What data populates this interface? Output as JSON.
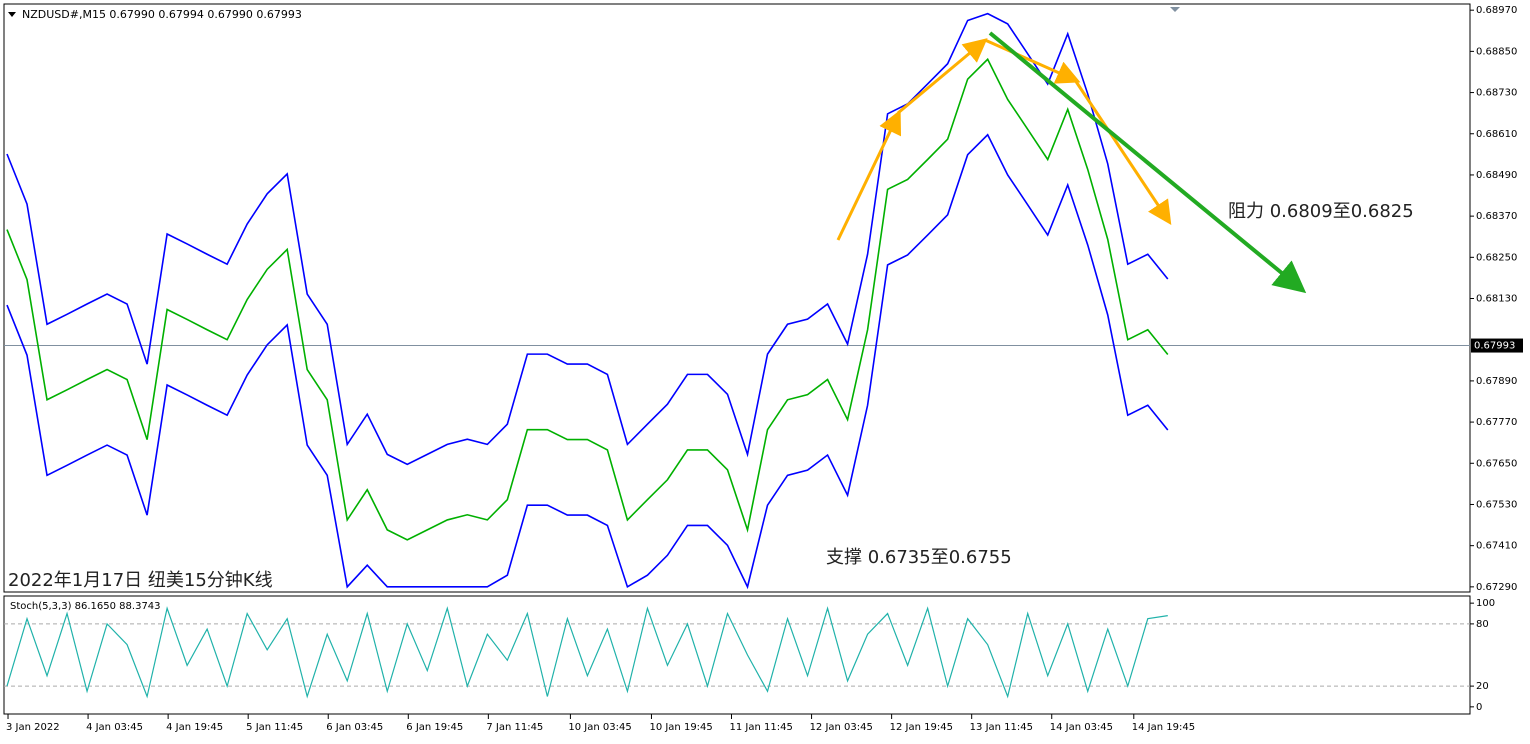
{
  "chart_data": [
    {
      "type": "line",
      "title": "NZDUSD#,M15  0.67990 0.67994 0.67990 0.67993",
      "x": [
        0,
        1,
        2,
        3,
        4,
        5,
        6,
        7,
        8,
        9,
        10,
        11,
        12,
        13,
        14,
        15,
        16,
        17,
        18,
        19,
        20,
        21,
        22,
        23,
        24,
        25,
        26,
        27,
        28,
        29,
        30,
        31,
        32,
        33,
        34,
        35,
        36,
        37,
        38,
        39,
        40,
        41,
        42,
        43,
        44,
        45,
        46,
        47,
        48,
        49,
        50,
        51,
        52,
        53,
        54,
        55,
        56,
        57,
        58
      ],
      "xlim": [
        -0.15,
        73.1
      ],
      "xticks": [
        {
          "value": 1.35,
          "label": "3 Jan 2022"
        },
        {
          "value": 5.35,
          "label": "4 Jan 03:45"
        },
        {
          "value": 9.35,
          "label": "4 Jan 19:45"
        },
        {
          "value": 13.35,
          "label": "5 Jan 11:45"
        },
        {
          "value": 17.35,
          "label": "6 Jan 03:45"
        },
        {
          "value": 21.35,
          "label": "6 Jan 19:45"
        },
        {
          "value": 25.35,
          "label": "7 Jan 11:45"
        },
        {
          "value": 29.45,
          "label": "10 Jan 03:45"
        },
        {
          "value": 33.5,
          "label": "10 Jan 19:45"
        },
        {
          "value": 37.5,
          "label": "11 Jan 11:45"
        },
        {
          "value": 41.5,
          "label": "12 Jan 03:45"
        },
        {
          "value": 45.5,
          "label": "12 Jan 19:45"
        },
        {
          "value": 49.5,
          "label": "13 Jan 11:45"
        },
        {
          "value": 53.5,
          "label": "14 Jan 03:45"
        },
        {
          "value": 57.6,
          "label": "14 Jan 19:45"
        }
      ],
      "ylim": [
        0.67275,
        0.68988
      ],
      "yticks": [
        {
          "value": 0.6897,
          "label": "0.68970"
        },
        {
          "value": 0.6885,
          "label": "0.68850"
        },
        {
          "value": 0.6873,
          "label": "0.68730"
        },
        {
          "value": 0.6861,
          "label": "0.68610"
        },
        {
          "value": 0.6849,
          "label": "0.68490"
        },
        {
          "value": 0.6837,
          "label": "0.68370"
        },
        {
          "value": 0.6825,
          "label": "0.68250"
        },
        {
          "value": 0.6813,
          "label": "0.68130"
        },
        {
          "value": 0.6789,
          "label": "0.67890"
        },
        {
          "value": 0.6777,
          "label": "0.67770"
        },
        {
          "value": 0.6765,
          "label": "0.67650"
        },
        {
          "value": 0.6753,
          "label": "0.67530"
        },
        {
          "value": 0.6741,
          "label": "0.67410"
        },
        {
          "value": 0.6729,
          "label": "0.67290"
        }
      ],
      "series": [
        {
          "color": "#00b000",
          "values": [
            0.68331,
            0.68185,
            0.67835,
            0.67864,
            0.67894,
            0.67923,
            0.67894,
            0.67719,
            0.68098,
            0.68069,
            0.68039,
            0.6801,
            0.68127,
            0.68215,
            0.68273,
            0.67923,
            0.67835,
            0.67485,
            0.67573,
            0.67456,
            0.67427,
            0.67456,
            0.67485,
            0.675,
            0.67485,
            0.67544,
            0.67748,
            0.67748,
            0.67719,
            0.67719,
            0.67689,
            0.67485,
            0.67544,
            0.67602,
            0.67689,
            0.67689,
            0.67631,
            0.67456,
            0.67748,
            0.67835,
            0.6785,
            0.67894,
            0.67777,
            0.68039,
            0.68448,
            0.68477,
            0.68535,
            0.68594,
            0.68769,
            0.68827,
            0.6871,
            0.68623,
            0.68535,
            0.68681,
            0.68506,
            0.68302,
            0.6801,
            0.68039,
            0.67967
          ]
        },
        {
          "color": "#0000ff",
          "values": [
            0.68551,
            0.68405,
            0.68055,
            0.68084,
            0.68114,
            0.68143,
            0.68114,
            0.67939,
            0.68318,
            0.68289,
            0.68259,
            0.6823,
            0.68347,
            0.68435,
            0.68493,
            0.68143,
            0.68055,
            0.67705,
            0.67793,
            0.67676,
            0.67647,
            0.67676,
            0.67705,
            0.6772,
            0.67705,
            0.67764,
            0.67968,
            0.67968,
            0.67939,
            0.67939,
            0.67909,
            0.67705,
            0.67764,
            0.67822,
            0.67909,
            0.67909,
            0.67851,
            0.67676,
            0.67968,
            0.68055,
            0.6807,
            0.68114,
            0.67997,
            0.68259,
            0.68668,
            0.68697,
            0.68755,
            0.68814,
            0.6894,
            0.6896,
            0.6893,
            0.68843,
            0.68755,
            0.68901,
            0.68726,
            0.68522,
            0.6823,
            0.68259,
            0.68187
          ]
        },
        {
          "color": "#0000ff",
          "values": [
            0.68111,
            0.67965,
            0.67615,
            0.67644,
            0.67674,
            0.67703,
            0.67674,
            0.67499,
            0.67878,
            0.67849,
            0.67819,
            0.6779,
            0.67907,
            0.67995,
            0.68053,
            0.67703,
            0.67615,
            0.6729,
            0.67353,
            0.6729,
            0.6729,
            0.6729,
            0.6729,
            0.6729,
            0.6729,
            0.67324,
            0.67528,
            0.67528,
            0.67499,
            0.67499,
            0.67469,
            0.6729,
            0.67324,
            0.67382,
            0.67469,
            0.67469,
            0.67411,
            0.6729,
            0.67528,
            0.67615,
            0.6763,
            0.67674,
            0.67557,
            0.67819,
            0.68228,
            0.68257,
            0.68315,
            0.68374,
            0.68549,
            0.68607,
            0.6849,
            0.68403,
            0.68315,
            0.68461,
            0.68286,
            0.68082,
            0.6779,
            0.67819,
            0.67747
          ]
        }
      ],
      "current_price": {
        "value": 0.67993,
        "label": "0.67993"
      },
      "annotations": [
        "阻力 0.6809至0.6825",
        "支撑 0.6735至0.6755",
        "2022年1月17日 纽美15分钟K线"
      ]
    },
    {
      "type": "line",
      "title": "Stoch(5,3,3) 86.1650 88.3743",
      "ylim": [
        -6.9,
        106.9
      ],
      "yticks": [
        100,
        80,
        20,
        0
      ],
      "series": [
        {
          "color": "#20b2aa",
          "values": [
            20,
            85,
            30,
            90,
            15,
            80,
            60,
            10,
            95,
            40,
            75,
            20,
            90,
            55,
            85,
            10,
            70,
            25,
            90,
            15,
            80,
            35,
            95,
            20,
            70,
            45,
            90,
            10,
            85,
            30,
            75,
            15,
            95,
            40,
            80,
            20,
            90,
            50,
            15,
            85,
            30,
            95,
            25,
            70,
            90,
            40,
            95,
            20,
            85,
            60,
            10,
            90,
            30,
            80,
            15,
            75,
            20,
            85,
            88
          ]
        }
      ]
    }
  ]
}
